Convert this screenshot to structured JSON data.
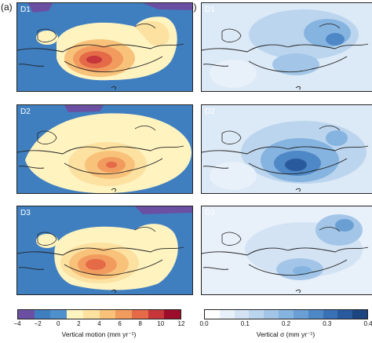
{
  "figure": {
    "panel_a_label": "(a)",
    "panel_b_label": "(b)"
  },
  "rows": [
    {
      "a_tag": "D1",
      "b_tag": "D1"
    },
    {
      "a_tag": "D2",
      "b_tag": "D2"
    },
    {
      "a_tag": "D3",
      "b_tag": "D3"
    }
  ],
  "colorbar_left": {
    "ticks": [
      "−4",
      "−2",
      "0",
      "2",
      "4",
      "6",
      "8",
      "10",
      "12"
    ],
    "label": "Vertical motion (mm yr⁻¹)",
    "colors": [
      "#6b4fa3",
      "#3f7fc0",
      "#4f8fcc",
      "#fff3c0",
      "#fce1a0",
      "#f9c27a",
      "#f29b5f",
      "#e46a48",
      "#c6363a",
      "#9c0d2c"
    ]
  },
  "colorbar_right": {
    "ticks": [
      "0.0",
      "0.1",
      "0.2",
      "0.3",
      "0.4"
    ],
    "label": "Vertical σ (mm yr⁻¹)",
    "colors": [
      "#ffffff",
      "#e8f0fa",
      "#d3e3f4",
      "#bcd5ee",
      "#a3c6e8",
      "#86b4e0",
      "#6a9fd4",
      "#4f88c6",
      "#3a70b5",
      "#2a5a9e",
      "#1c447f"
    ]
  },
  "colors": {
    "ocean_blue": "#3f7fc0",
    "purple": "#6b4fa3",
    "yellow": "#fff3c0",
    "light_orange": "#f9c27a",
    "orange": "#f29b5f",
    "red_orange": "#e46a48",
    "red": "#c6363a",
    "sigma_bg": "#dce9f6"
  }
}
